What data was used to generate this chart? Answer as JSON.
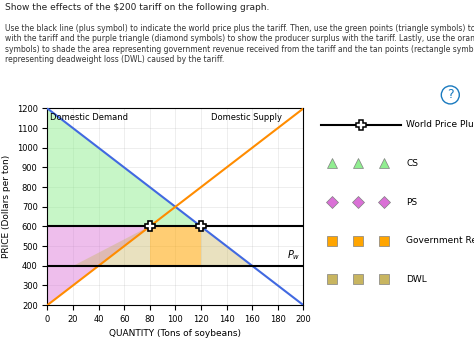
{
  "title_text": "Show the effects of the $200 tariff on the following graph.",
  "xlabel": "QUANTITY (Tons of soybeans)",
  "ylabel": "PRICE (Dollars per ton)",
  "xlim": [
    0,
    200
  ],
  "ylim": [
    200,
    1200
  ],
  "xticks": [
    0,
    20,
    40,
    60,
    80,
    100,
    120,
    140,
    160,
    180,
    200
  ],
  "yticks": [
    200,
    300,
    400,
    500,
    600,
    700,
    800,
    900,
    1000,
    1100,
    1200
  ],
  "supply_color": "#FF8C00",
  "demand_color": "#4169E1",
  "Pw": 400,
  "Pt": 600,
  "Qs_pw": 20,
  "Qd_pw": 160,
  "Qs_pt": 80,
  "Qd_pt": 120,
  "cs_color": "#90EE90",
  "cs_alpha": 0.5,
  "ps_color": "#DA70D6",
  "ps_alpha": 0.45,
  "gov_color": "#FFA500",
  "gov_alpha": 0.55,
  "dwl_color": "#C8B560",
  "dwl_alpha": 0.4,
  "bg_color": "#FFFFFF",
  "demand_label": "Domestic Demand",
  "supply_label": "Domestic Supply",
  "pw_label": "Pw",
  "figsize": [
    4.74,
    3.39
  ],
  "dpi": 100
}
